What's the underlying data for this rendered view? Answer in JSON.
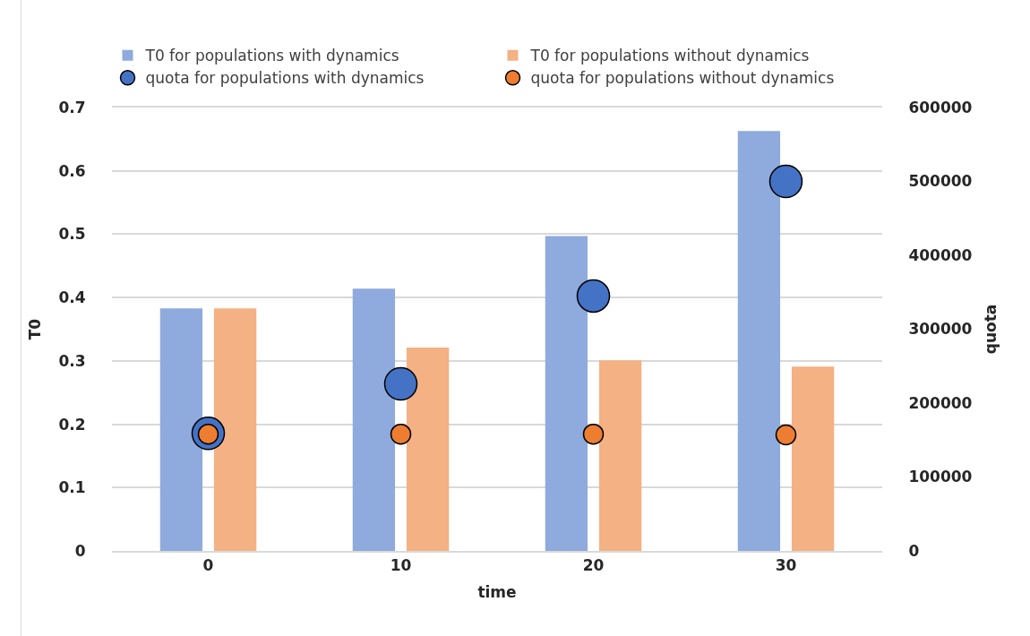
{
  "chart_data": {
    "type": "bar",
    "xlabel": "time",
    "ylabel": "T0",
    "y2label": "quota",
    "categories": [
      "0",
      "10",
      "20",
      "30"
    ],
    "series": [
      {
        "name": "T0 for populations with dynamics",
        "color": "#8faadc",
        "values": [
          0.383,
          0.414,
          0.497,
          0.663
        ]
      },
      {
        "name": "T0 for populations without dynamics",
        "color": "#f4b183",
        "values": [
          0.383,
          0.321,
          0.301,
          0.291
        ]
      },
      {
        "name": "quota for populations with dynamics",
        "type": "scatter",
        "axis": "y2",
        "color": "#4472c4",
        "values": [
          159000,
          226000,
          345000,
          500000
        ]
      },
      {
        "name": "quota for populations without dynamics",
        "type": "scatter",
        "axis": "y2",
        "color": "#ed7d31",
        "values": [
          158000,
          158000,
          158000,
          157000
        ]
      }
    ],
    "ylim": [
      0,
      0.7
    ],
    "yticks": [
      0,
      0.1,
      0.2,
      0.3,
      0.4,
      0.5,
      0.6,
      0.7
    ],
    "y2lim": [
      0,
      600000
    ],
    "y2ticks": [
      0,
      100000,
      200000,
      300000,
      400000,
      500000,
      600000
    ],
    "grid": "y",
    "legend": "top",
    "marker": "circle"
  }
}
